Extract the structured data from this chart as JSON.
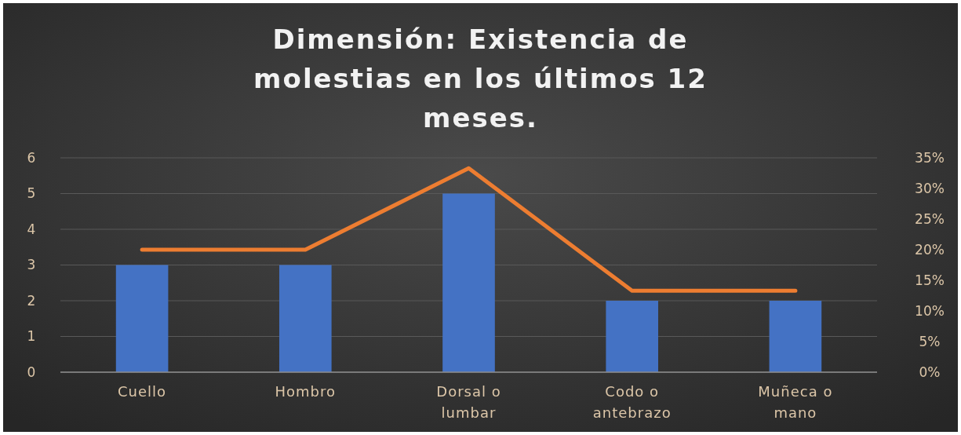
{
  "chart_data": {
    "type": "bar",
    "title": "Dimensión: Existencia de molestias en los últimos 12 meses.",
    "categories": [
      "Cuello",
      "Hombro",
      "Dorsal o lumbar",
      "Codo o antebrazo",
      "Muñeca o mano"
    ],
    "series": [
      {
        "color": "#4472c4",
        "values": [
          3,
          3,
          5,
          2,
          2
        ]
      },
      {
        "type": "line",
        "axis": "y2",
        "color": "#ed7d31",
        "values": [
          20,
          20,
          33.3,
          13.3,
          13.3
        ]
      }
    ],
    "ylim": [
      0,
      6
    ],
    "yticks": [
      0,
      1,
      2,
      3,
      4,
      5,
      6
    ],
    "y2lim": [
      0,
      35
    ],
    "y2ticks": [
      {
        "value": 0,
        "label": "0%"
      },
      {
        "value": 5,
        "label": "5%"
      },
      {
        "value": 10,
        "label": "10%"
      },
      {
        "value": 15,
        "label": "15%"
      },
      {
        "value": 20,
        "label": "20%"
      },
      {
        "value": 25,
        "label": "25%"
      },
      {
        "value": 30,
        "label": "30%"
      },
      {
        "value": 35,
        "label": "35%"
      }
    ],
    "grid": "y",
    "marker": "none",
    "line_style": "solid"
  }
}
